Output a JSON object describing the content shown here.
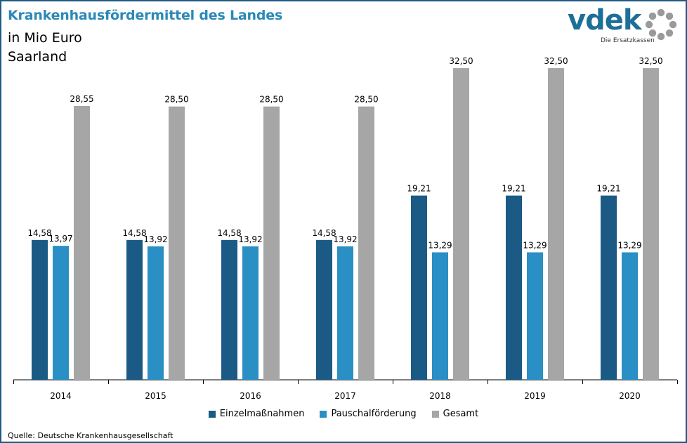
{
  "header": {
    "title": "Krankenhausfördermittel des Landes",
    "subtitle_line1": "in Mio Euro",
    "subtitle_line2": "Saarland"
  },
  "logo": {
    "word": "vdek",
    "tagline": "Die Ersatzkassen"
  },
  "source": "Quelle: Deutsche Krankenhausgesellschaft",
  "colors": {
    "einzel": "#1a5a85",
    "pauschal": "#2a8fc4",
    "gesamt": "#a6a6a6",
    "title": "#2a89b8",
    "frame": "#1f5a85"
  },
  "chart_data": {
    "type": "bar",
    "categories": [
      "2014",
      "2015",
      "2016",
      "2017",
      "2018",
      "2019",
      "2020"
    ],
    "series": [
      {
        "name": "Einzelmaßnahmen",
        "values": [
          14.58,
          14.58,
          14.58,
          14.58,
          19.21,
          19.21,
          19.21
        ],
        "labels": [
          "14,58",
          "14,58",
          "14,58",
          "14,58",
          "19,21",
          "19,21",
          "19,21"
        ]
      },
      {
        "name": "Pauschalförderung",
        "values": [
          13.97,
          13.92,
          13.92,
          13.92,
          13.29,
          13.29,
          13.29
        ],
        "labels": [
          "13,97",
          "13,92",
          "13,92",
          "13,92",
          "13,29",
          "13,29",
          "13,29"
        ]
      },
      {
        "name": "Gesamt",
        "values": [
          28.55,
          28.5,
          28.5,
          28.5,
          32.5,
          32.5,
          32.5
        ],
        "labels": [
          "28,55",
          "28,50",
          "28,50",
          "28,50",
          "32,50",
          "32,50",
          "32,50"
        ]
      }
    ],
    "ylim": [
      0,
      35
    ],
    "grid": false,
    "legend_position": "bottom"
  }
}
